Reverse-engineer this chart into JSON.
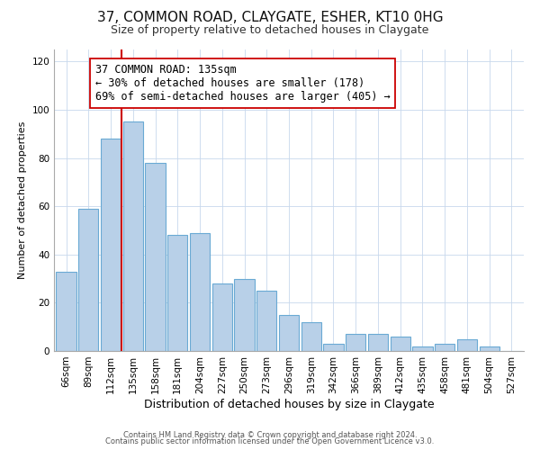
{
  "title": "37, COMMON ROAD, CLAYGATE, ESHER, KT10 0HG",
  "subtitle": "Size of property relative to detached houses in Claygate",
  "xlabel": "Distribution of detached houses by size in Claygate",
  "ylabel": "Number of detached properties",
  "bar_labels": [
    "66sqm",
    "89sqm",
    "112sqm",
    "135sqm",
    "158sqm",
    "181sqm",
    "204sqm",
    "227sqm",
    "250sqm",
    "273sqm",
    "296sqm",
    "319sqm",
    "342sqm",
    "366sqm",
    "389sqm",
    "412sqm",
    "435sqm",
    "458sqm",
    "481sqm",
    "504sqm",
    "527sqm"
  ],
  "bar_values": [
    33,
    59,
    88,
    95,
    78,
    48,
    49,
    28,
    30,
    25,
    15,
    12,
    3,
    7,
    7,
    6,
    2,
    3,
    5,
    2,
    0
  ],
  "bar_color": "#b8d0e8",
  "bar_edge_color": "#6aaad4",
  "vline_color": "#cc0000",
  "annotation_text": "37 COMMON ROAD: 135sqm\n← 30% of detached houses are smaller (178)\n69% of semi-detached houses are larger (405) →",
  "annotation_box_color": "#ffffff",
  "annotation_box_edge": "#cc0000",
  "ylim": [
    0,
    125
  ],
  "yticks": [
    0,
    20,
    40,
    60,
    80,
    100,
    120
  ],
  "footer1": "Contains HM Land Registry data © Crown copyright and database right 2024.",
  "footer2": "Contains public sector information licensed under the Open Government Licence v3.0.",
  "background_color": "#ffffff",
  "title_fontsize": 11,
  "subtitle_fontsize": 9,
  "xlabel_fontsize": 9,
  "ylabel_fontsize": 8,
  "annotation_fontsize": 8.5,
  "footer_fontsize": 6,
  "tick_fontsize": 7.5
}
